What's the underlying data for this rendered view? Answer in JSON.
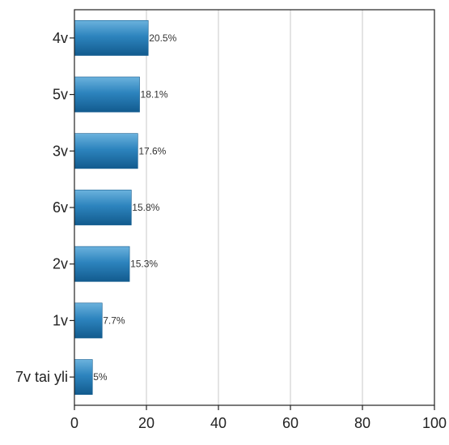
{
  "chart_data": {
    "type": "bar",
    "orientation": "horizontal",
    "categories": [
      "4v",
      "5v",
      "3v",
      "6v",
      "2v",
      "1v",
      "7v tai yli"
    ],
    "values": [
      20.5,
      18.1,
      17.6,
      15.8,
      15.3,
      7.7,
      5
    ],
    "data_labels": [
      "20.5%",
      "18.1%",
      "17.6%",
      "15.8%",
      "15.3%",
      "7.7%",
      "5%"
    ],
    "xlim": [
      0,
      100
    ],
    "x_ticks": [
      0,
      20,
      40,
      60,
      80,
      100
    ],
    "title": "",
    "xlabel": "",
    "ylabel": "",
    "grid": "vertical",
    "legend": "none",
    "colors": {
      "bar_light": "#6bb2dd",
      "bar_mid": "#2d84be",
      "bar_dark": "#125b8e",
      "grid": "#c8c8c8",
      "axis": "#222222"
    }
  }
}
